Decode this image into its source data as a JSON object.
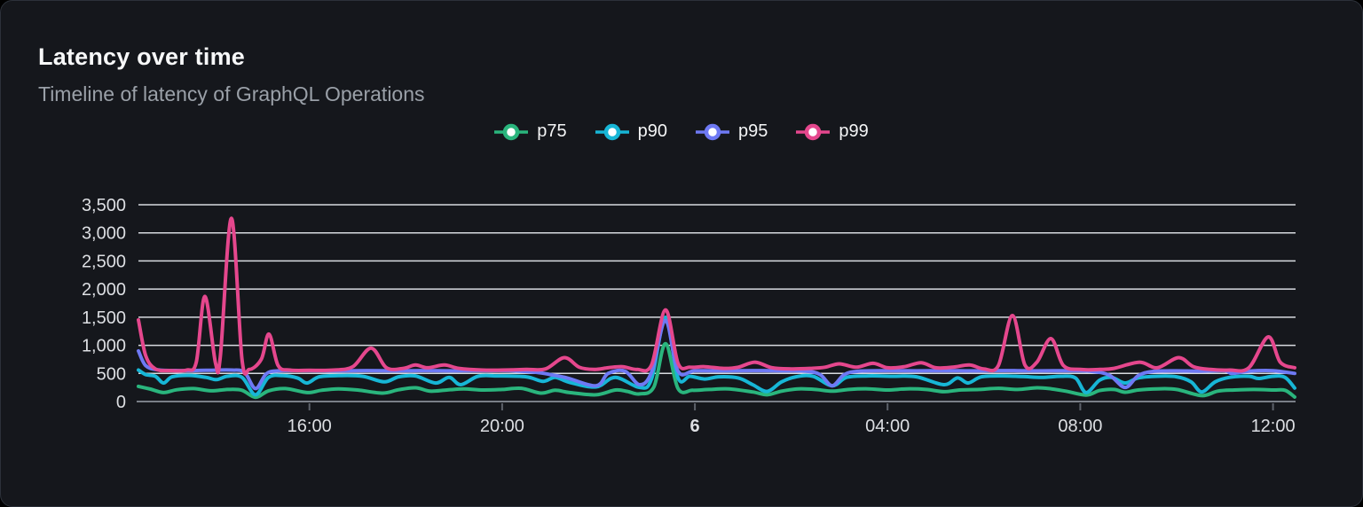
{
  "panel": {
    "title": "Latency over time",
    "subtitle": "Timeline of latency of GraphQL Operations"
  },
  "colors": {
    "background": "#15171c",
    "card_border": "#2c313a",
    "title_text": "#f7f8f9",
    "subtitle_text": "#9aa0a8",
    "legend_text": "#f4f5f6",
    "grid": "#d8dbe0",
    "axis": "#7a7f88",
    "tick_mark": "#5d626b",
    "tick_text": "#dddfe3",
    "marker_fill": "#ffffff"
  },
  "chart_data": {
    "type": "line",
    "title": "Latency over time",
    "xlabel": "",
    "ylabel": "",
    "grid": true,
    "legend_position": "top-center",
    "x_axis": {
      "unit": "time of day (hours, continuous across midnight; 24 = 00:00 of day 6)",
      "min": 12.45,
      "max": 36.45,
      "ticks": [
        {
          "value": 16,
          "label": "16:00",
          "bold": false
        },
        {
          "value": 20,
          "label": "20:00",
          "bold": false
        },
        {
          "value": 24,
          "label": "6",
          "bold": true
        },
        {
          "value": 28,
          "label": "04:00",
          "bold": false
        },
        {
          "value": 32,
          "label": "08:00",
          "bold": false
        },
        {
          "value": 36,
          "label": "12:00",
          "bold": false
        }
      ]
    },
    "y_axis": {
      "min": 0,
      "max": 3500,
      "ticks": [
        {
          "value": 0,
          "label": "0"
        },
        {
          "value": 500,
          "label": "500"
        },
        {
          "value": 1000,
          "label": "1,000"
        },
        {
          "value": 1500,
          "label": "1,500"
        },
        {
          "value": 2000,
          "label": "2,000"
        },
        {
          "value": 2500,
          "label": "2,500"
        },
        {
          "value": 3000,
          "label": "3,000"
        },
        {
          "value": 3500,
          "label": "3,500"
        }
      ]
    },
    "series": [
      {
        "name": "p75",
        "color": "#2ab57d",
        "points": [
          [
            12.45,
            270
          ],
          [
            12.7,
            220
          ],
          [
            12.97,
            160
          ],
          [
            13.25,
            210
          ],
          [
            13.6,
            230
          ],
          [
            13.95,
            190
          ],
          [
            14.3,
            215
          ],
          [
            14.6,
            200
          ],
          [
            14.88,
            75
          ],
          [
            15.15,
            190
          ],
          [
            15.5,
            230
          ],
          [
            15.95,
            160
          ],
          [
            16.25,
            200
          ],
          [
            16.6,
            225
          ],
          [
            17.0,
            205
          ],
          [
            17.52,
            150
          ],
          [
            17.85,
            210
          ],
          [
            18.2,
            245
          ],
          [
            18.5,
            185
          ],
          [
            18.85,
            205
          ],
          [
            19.2,
            225
          ],
          [
            19.6,
            205
          ],
          [
            20.0,
            215
          ],
          [
            20.4,
            235
          ],
          [
            20.8,
            150
          ],
          [
            21.1,
            200
          ],
          [
            21.4,
            160
          ],
          [
            21.95,
            120
          ],
          [
            22.35,
            205
          ],
          [
            22.6,
            180
          ],
          [
            22.85,
            135
          ],
          [
            23.15,
            260
          ],
          [
            23.39,
            1030
          ],
          [
            23.65,
            230
          ],
          [
            23.95,
            200
          ],
          [
            24.3,
            215
          ],
          [
            24.7,
            225
          ],
          [
            25.2,
            170
          ],
          [
            25.5,
            120
          ],
          [
            25.8,
            185
          ],
          [
            26.15,
            225
          ],
          [
            26.5,
            215
          ],
          [
            26.85,
            185
          ],
          [
            27.2,
            215
          ],
          [
            27.6,
            225
          ],
          [
            28.0,
            205
          ],
          [
            28.4,
            225
          ],
          [
            28.8,
            215
          ],
          [
            29.17,
            175
          ],
          [
            29.5,
            205
          ],
          [
            29.9,
            215
          ],
          [
            30.3,
            235
          ],
          [
            30.7,
            215
          ],
          [
            31.1,
            245
          ],
          [
            31.4,
            225
          ],
          [
            31.7,
            185
          ],
          [
            32.12,
            115
          ],
          [
            32.4,
            195
          ],
          [
            32.7,
            215
          ],
          [
            32.93,
            165
          ],
          [
            33.2,
            205
          ],
          [
            33.6,
            225
          ],
          [
            34.0,
            215
          ],
          [
            34.52,
            105
          ],
          [
            34.85,
            185
          ],
          [
            35.2,
            205
          ],
          [
            35.6,
            215
          ],
          [
            36.0,
            205
          ],
          [
            36.25,
            200
          ],
          [
            36.45,
            80
          ]
        ]
      },
      {
        "name": "p90",
        "color": "#17b6d6",
        "points": [
          [
            12.45,
            560
          ],
          [
            12.6,
            480
          ],
          [
            12.8,
            450
          ],
          [
            12.97,
            330
          ],
          [
            13.15,
            440
          ],
          [
            13.5,
            465
          ],
          [
            13.85,
            430
          ],
          [
            14.07,
            390
          ],
          [
            14.3,
            450
          ],
          [
            14.6,
            430
          ],
          [
            14.88,
            120
          ],
          [
            15.15,
            430
          ],
          [
            15.45,
            460
          ],
          [
            15.75,
            420
          ],
          [
            15.95,
            330
          ],
          [
            16.2,
            440
          ],
          [
            16.6,
            460
          ],
          [
            17.1,
            450
          ],
          [
            17.55,
            350
          ],
          [
            17.85,
            440
          ],
          [
            18.2,
            455
          ],
          [
            18.62,
            330
          ],
          [
            18.9,
            430
          ],
          [
            19.14,
            300
          ],
          [
            19.5,
            450
          ],
          [
            19.9,
            455
          ],
          [
            20.5,
            440
          ],
          [
            20.85,
            360
          ],
          [
            21.1,
            430
          ],
          [
            21.4,
            340
          ],
          [
            21.95,
            260
          ],
          [
            22.35,
            430
          ],
          [
            22.85,
            250
          ],
          [
            23.1,
            400
          ],
          [
            23.39,
            1500
          ],
          [
            23.65,
            420
          ],
          [
            23.9,
            450
          ],
          [
            24.2,
            400
          ],
          [
            24.5,
            440
          ],
          [
            24.9,
            420
          ],
          [
            25.2,
            300
          ],
          [
            25.5,
            180
          ],
          [
            25.8,
            350
          ],
          [
            26.1,
            440
          ],
          [
            26.45,
            450
          ],
          [
            26.85,
            280
          ],
          [
            27.15,
            430
          ],
          [
            27.6,
            455
          ],
          [
            28.1,
            450
          ],
          [
            28.6,
            440
          ],
          [
            29.17,
            300
          ],
          [
            29.45,
            420
          ],
          [
            29.67,
            330
          ],
          [
            29.95,
            440
          ],
          [
            30.4,
            455
          ],
          [
            30.8,
            445
          ],
          [
            31.2,
            430
          ],
          [
            31.6,
            450
          ],
          [
            31.9,
            420
          ],
          [
            32.12,
            160
          ],
          [
            32.4,
            380
          ],
          [
            32.65,
            430
          ],
          [
            32.93,
            330
          ],
          [
            33.2,
            420
          ],
          [
            33.6,
            450
          ],
          [
            34.0,
            440
          ],
          [
            34.3,
            350
          ],
          [
            34.52,
            170
          ],
          [
            34.8,
            350
          ],
          [
            35.1,
            430
          ],
          [
            35.5,
            450
          ],
          [
            35.7,
            410
          ],
          [
            36.0,
            450
          ],
          [
            36.25,
            430
          ],
          [
            36.45,
            240
          ]
        ]
      },
      {
        "name": "p95",
        "color": "#6e79f4",
        "points": [
          [
            12.45,
            900
          ],
          [
            12.6,
            640
          ],
          [
            12.85,
            565
          ],
          [
            13.3,
            550
          ],
          [
            13.85,
            555
          ],
          [
            14.38,
            560
          ],
          [
            14.65,
            520
          ],
          [
            14.88,
            230
          ],
          [
            15.1,
            490
          ],
          [
            15.35,
            545
          ],
          [
            16.0,
            550
          ],
          [
            16.6,
            545
          ],
          [
            17.2,
            550
          ],
          [
            17.8,
            545
          ],
          [
            18.4,
            550
          ],
          [
            19.0,
            545
          ],
          [
            19.6,
            550
          ],
          [
            20.2,
            548
          ],
          [
            20.7,
            520
          ],
          [
            21.0,
            480
          ],
          [
            21.35,
            420
          ],
          [
            21.95,
            280
          ],
          [
            22.2,
            500
          ],
          [
            22.55,
            540
          ],
          [
            22.85,
            300
          ],
          [
            23.1,
            520
          ],
          [
            23.39,
            1440
          ],
          [
            23.65,
            540
          ],
          [
            24.0,
            548
          ],
          [
            24.6,
            545
          ],
          [
            25.2,
            550
          ],
          [
            25.8,
            545
          ],
          [
            26.3,
            540
          ],
          [
            26.6,
            480
          ],
          [
            26.85,
            280
          ],
          [
            27.1,
            480
          ],
          [
            27.4,
            540
          ],
          [
            28.0,
            548
          ],
          [
            28.6,
            545
          ],
          [
            29.2,
            548
          ],
          [
            29.8,
            545
          ],
          [
            30.3,
            550
          ],
          [
            30.7,
            548
          ],
          [
            31.2,
            545
          ],
          [
            31.7,
            548
          ],
          [
            32.2,
            540
          ],
          [
            32.6,
            470
          ],
          [
            32.93,
            250
          ],
          [
            33.2,
            460
          ],
          [
            33.5,
            535
          ],
          [
            34.0,
            545
          ],
          [
            34.5,
            540
          ],
          [
            35.0,
            548
          ],
          [
            35.15,
            500
          ],
          [
            35.5,
            540
          ],
          [
            36.0,
            548
          ],
          [
            36.45,
            500
          ]
        ]
      },
      {
        "name": "p99",
        "color": "#e5478d",
        "points": [
          [
            12.45,
            1450
          ],
          [
            12.6,
            820
          ],
          [
            12.8,
            580
          ],
          [
            13.1,
            550
          ],
          [
            13.45,
            560
          ],
          [
            13.65,
            700
          ],
          [
            13.83,
            1870
          ],
          [
            14.05,
            680
          ],
          [
            14.15,
            800
          ],
          [
            14.38,
            3260
          ],
          [
            14.6,
            750
          ],
          [
            14.75,
            570
          ],
          [
            15.0,
            750
          ],
          [
            15.16,
            1200
          ],
          [
            15.35,
            640
          ],
          [
            15.6,
            560
          ],
          [
            16.0,
            555
          ],
          [
            16.5,
            560
          ],
          [
            16.9,
            620
          ],
          [
            17.28,
            950
          ],
          [
            17.6,
            600
          ],
          [
            17.95,
            590
          ],
          [
            18.2,
            650
          ],
          [
            18.45,
            600
          ],
          [
            18.8,
            650
          ],
          [
            19.1,
            590
          ],
          [
            19.6,
            560
          ],
          [
            20.0,
            560
          ],
          [
            20.5,
            570
          ],
          [
            20.9,
            580
          ],
          [
            21.29,
            780
          ],
          [
            21.6,
            610
          ],
          [
            21.9,
            570
          ],
          [
            22.2,
            600
          ],
          [
            22.5,
            620
          ],
          [
            22.8,
            570
          ],
          [
            23.1,
            650
          ],
          [
            23.39,
            1630
          ],
          [
            23.65,
            680
          ],
          [
            23.9,
            610
          ],
          [
            24.2,
            620
          ],
          [
            24.6,
            590
          ],
          [
            24.9,
            610
          ],
          [
            25.25,
            700
          ],
          [
            25.6,
            600
          ],
          [
            26.0,
            580
          ],
          [
            26.4,
            590
          ],
          [
            26.7,
            610
          ],
          [
            27.0,
            670
          ],
          [
            27.35,
            610
          ],
          [
            27.7,
            680
          ],
          [
            28.0,
            600
          ],
          [
            28.35,
            620
          ],
          [
            28.7,
            690
          ],
          [
            29.0,
            600
          ],
          [
            29.35,
            610
          ],
          [
            29.7,
            650
          ],
          [
            30.0,
            580
          ],
          [
            30.3,
            640
          ],
          [
            30.59,
            1530
          ],
          [
            30.85,
            650
          ],
          [
            31.1,
            700
          ],
          [
            31.39,
            1120
          ],
          [
            31.65,
            640
          ],
          [
            32.0,
            570
          ],
          [
            32.4,
            570
          ],
          [
            32.7,
            590
          ],
          [
            33.23,
            700
          ],
          [
            33.6,
            600
          ],
          [
            34.04,
            780
          ],
          [
            34.35,
            620
          ],
          [
            34.7,
            570
          ],
          [
            35.1,
            560
          ],
          [
            35.5,
            600
          ],
          [
            35.9,
            1150
          ],
          [
            36.15,
            700
          ],
          [
            36.45,
            600
          ]
        ]
      }
    ]
  }
}
